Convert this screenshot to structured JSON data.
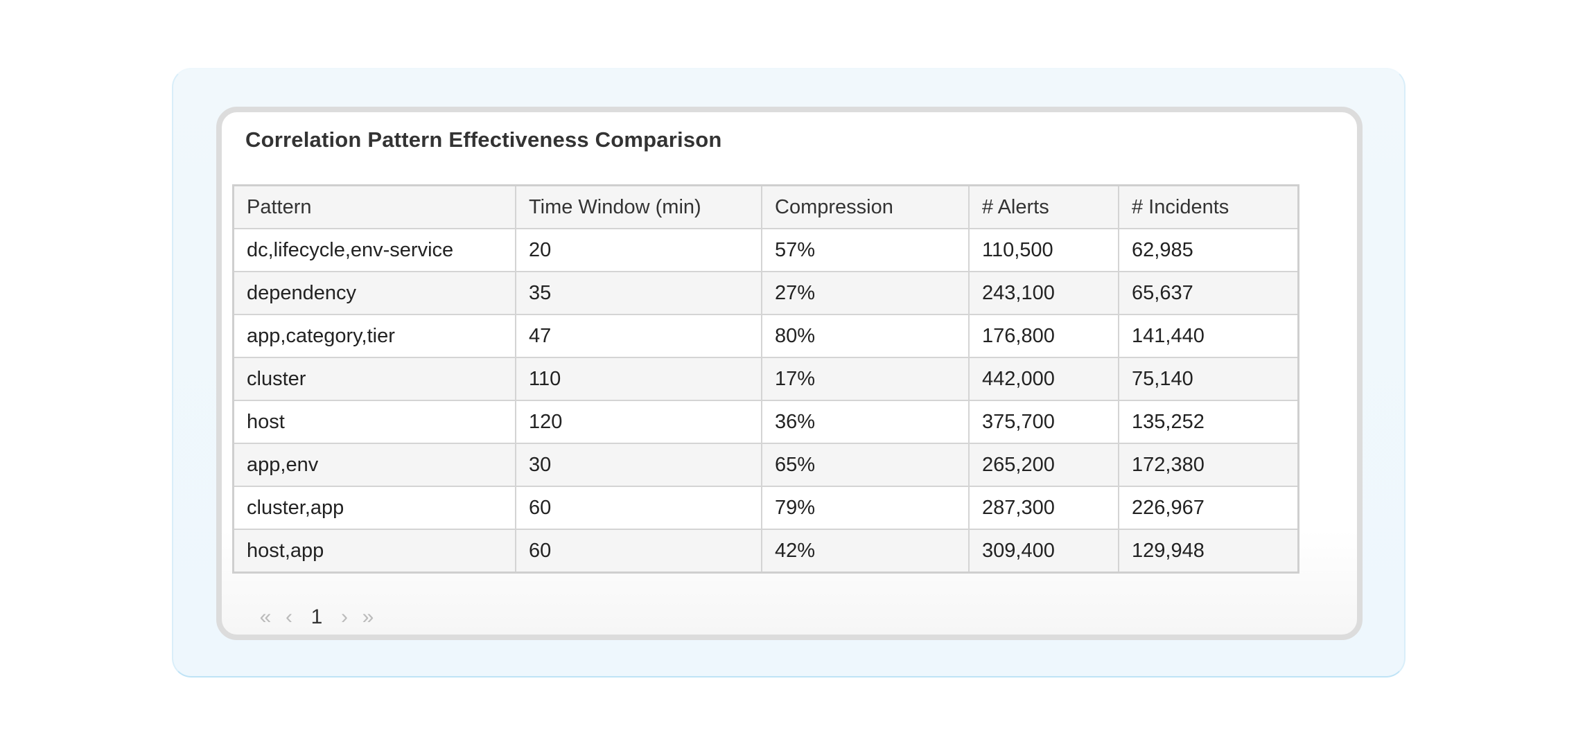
{
  "widget": {
    "title": "Correlation Pattern Effectiveness Comparison"
  },
  "table": {
    "columns": [
      "Pattern",
      "Time Window (min)",
      "Compression",
      "# Alerts",
      "# Incidents"
    ],
    "rows": [
      [
        "dc,lifecycle,env-service",
        "20",
        "57%",
        "110,500",
        "62,985"
      ],
      [
        "dependency",
        "35",
        "27%",
        "243,100",
        "65,637"
      ],
      [
        "app,category,tier",
        "47",
        "80%",
        "176,800",
        "141,440"
      ],
      [
        "cluster",
        "110",
        "17%",
        "442,000",
        "75,140"
      ],
      [
        "host",
        "120",
        "36%",
        "375,700",
        "135,252"
      ],
      [
        "app,env",
        "30",
        "65%",
        "265,200",
        "172,380"
      ],
      [
        "cluster,app",
        "60",
        "79%",
        "287,300",
        "226,967"
      ],
      [
        "host,app",
        "60",
        "42%",
        "309,400",
        "129,948"
      ]
    ]
  },
  "pagination": {
    "first_icon": "«",
    "prev_icon": "‹",
    "current_page": "1",
    "next_icon": "›",
    "last_icon": "»"
  },
  "colors": {
    "frame_border": "#bfe3f6",
    "panel_border": "#dcdcdc",
    "header_bg": "#f5f5f5"
  }
}
